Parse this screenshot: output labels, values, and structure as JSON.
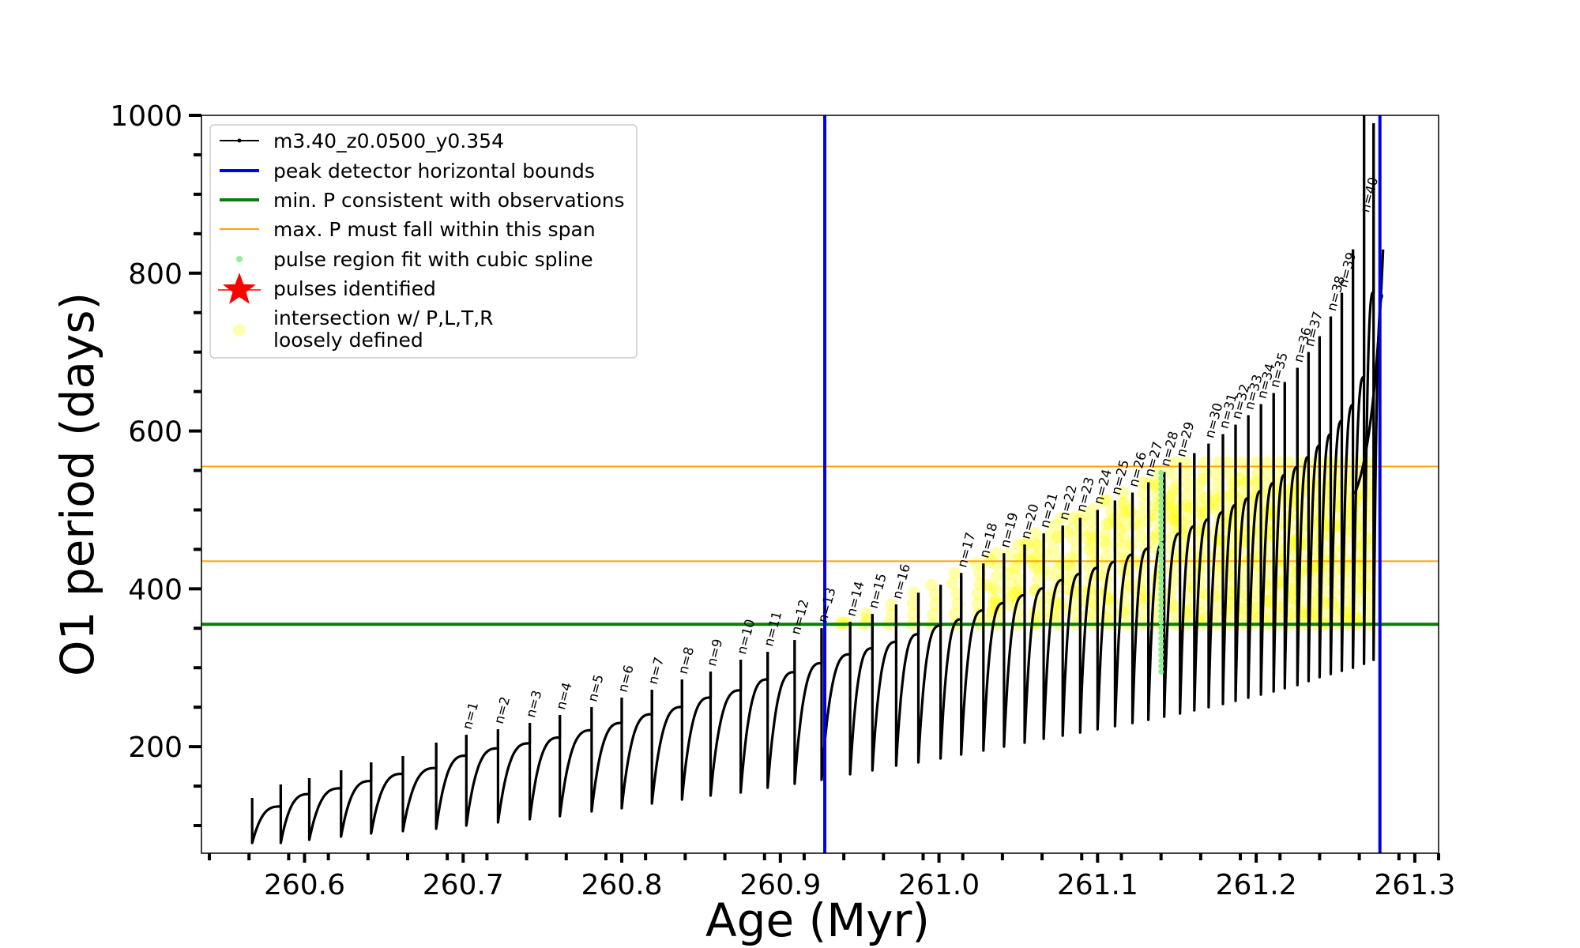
{
  "chart_data": {
    "type": "line",
    "xlabel": "Age (Myr)",
    "ylabel": "O1 period (days)",
    "xlim": [
      260.535,
      261.315
    ],
    "ylim": [
      65,
      1000
    ],
    "xticks": [
      260.6,
      260.7,
      260.8,
      260.9,
      261.0,
      261.1,
      261.2,
      261.3
    ],
    "xtick_labels": [
      "260.6",
      "260.7",
      "260.8",
      "260.9",
      "261.0",
      "261.1",
      "261.2",
      "261.3"
    ],
    "yticks": [
      200,
      400,
      600,
      800,
      1000
    ],
    "ytick_labels": [
      "200",
      "400",
      "600",
      "800",
      "1000"
    ],
    "grid": false,
    "legend_position": "top-left",
    "legend": [
      {
        "label": "m3.40_z0.0500_y0.354",
        "kind": "line-marker",
        "color": "#000000"
      },
      {
        "label": "peak detector horizontal bounds",
        "kind": "line",
        "color": "#0000ee"
      },
      {
        "label": "min. P consistent with observations",
        "kind": "line",
        "color": "#0a7d0a"
      },
      {
        "label": "max. P must fall within this span",
        "kind": "thin-line",
        "color": "#ffa500"
      },
      {
        "label": "pulse region fit with cubic spline",
        "kind": "dot",
        "color": "#90ee90"
      },
      {
        "label": "pulses identified",
        "kind": "star",
        "color": "#ff0000"
      },
      {
        "label": "intersection w/ P,L,T,R\nloosely defined",
        "kind": "dot",
        "color": "#ffffb0"
      }
    ],
    "vertical_lines": [
      {
        "x": 260.928,
        "color": "#0000ee",
        "series": "peak detector horizontal bounds"
      },
      {
        "x": 261.278,
        "color": "#0000ee",
        "series": "peak detector horizontal bounds"
      }
    ],
    "horizontal_lines": [
      {
        "y": 355,
        "color": "#0a7d0a",
        "series": "min. P consistent with observations"
      },
      {
        "y": 435,
        "color": "#ffa500",
        "series": "max. P must fall within this span"
      },
      {
        "y": 555,
        "color": "#ffa500",
        "series": "max. P must fall within this span"
      }
    ],
    "spline_fit_region": {
      "x": 261.14,
      "y_min": 295,
      "y_max": 550,
      "color": "#90ee90"
    },
    "series_pulses": [
      {
        "label": "",
        "x": 260.567,
        "min": 78,
        "max": 135
      },
      {
        "label": "",
        "x": 260.585,
        "min": 78,
        "max": 152
      },
      {
        "label": "",
        "x": 260.603,
        "min": 82,
        "max": 160
      },
      {
        "label": "",
        "x": 260.623,
        "min": 86,
        "max": 170
      },
      {
        "label": "",
        "x": 260.642,
        "min": 90,
        "max": 180
      },
      {
        "label": "",
        "x": 260.662,
        "min": 93,
        "max": 188
      },
      {
        "label": "",
        "x": 260.683,
        "min": 96,
        "max": 205
      },
      {
        "label": "n=1",
        "x": 260.702,
        "min": 100,
        "max": 215
      },
      {
        "label": "n=2",
        "x": 260.722,
        "min": 104,
        "max": 222
      },
      {
        "label": "n=3",
        "x": 260.742,
        "min": 108,
        "max": 230
      },
      {
        "label": "n=4",
        "x": 260.761,
        "min": 112,
        "max": 240
      },
      {
        "label": "n=5",
        "x": 260.781,
        "min": 118,
        "max": 250
      },
      {
        "label": "n=6",
        "x": 260.8,
        "min": 122,
        "max": 262
      },
      {
        "label": "n=7",
        "x": 260.819,
        "min": 128,
        "max": 272
      },
      {
        "label": "n=8",
        "x": 260.838,
        "min": 133,
        "max": 285
      },
      {
        "label": "n=9",
        "x": 260.856,
        "min": 138,
        "max": 295
      },
      {
        "label": "n=10",
        "x": 260.875,
        "min": 142,
        "max": 310
      },
      {
        "label": "n=11",
        "x": 260.892,
        "min": 148,
        "max": 320
      },
      {
        "label": "n=12",
        "x": 260.909,
        "min": 153,
        "max": 335
      },
      {
        "label": "n=13",
        "x": 260.926,
        "min": 158,
        "max": 350
      },
      {
        "label": "n=14",
        "x": 260.944,
        "min": 165,
        "max": 358
      },
      {
        "label": "n=15",
        "x": 260.958,
        "min": 170,
        "max": 368
      },
      {
        "label": "n=16",
        "x": 260.973,
        "min": 176,
        "max": 380
      },
      {
        "label": "",
        "x": 260.987,
        "min": 180,
        "max": 395
      },
      {
        "label": "",
        "x": 261.001,
        "min": 185,
        "max": 405
      },
      {
        "label": "n=17",
        "x": 261.014,
        "min": 190,
        "max": 420
      },
      {
        "label": "n=18",
        "x": 261.028,
        "min": 195,
        "max": 432
      },
      {
        "label": "n=19",
        "x": 261.041,
        "min": 200,
        "max": 445
      },
      {
        "label": "n=20",
        "x": 261.054,
        "min": 205,
        "max": 456
      },
      {
        "label": "n=21",
        "x": 261.066,
        "min": 210,
        "max": 470
      },
      {
        "label": "n=22",
        "x": 261.078,
        "min": 214,
        "max": 480
      },
      {
        "label": "n=23",
        "x": 261.089,
        "min": 218,
        "max": 490
      },
      {
        "label": "n=24",
        "x": 261.1,
        "min": 222,
        "max": 500
      },
      {
        "label": "n=25",
        "x": 261.111,
        "min": 226,
        "max": 512
      },
      {
        "label": "n=26",
        "x": 261.122,
        "min": 230,
        "max": 522
      },
      {
        "label": "n=27",
        "x": 261.132,
        "min": 234,
        "max": 535
      },
      {
        "label": "n=28",
        "x": 261.142,
        "min": 238,
        "max": 548
      },
      {
        "label": "n=29",
        "x": 261.152,
        "min": 242,
        "max": 560
      },
      {
        "label": "",
        "x": 261.161,
        "min": 246,
        "max": 572
      },
      {
        "label": "n=30",
        "x": 261.17,
        "min": 250,
        "max": 584
      },
      {
        "label": "n=31",
        "x": 261.179,
        "min": 254,
        "max": 596
      },
      {
        "label": "n=32",
        "x": 261.187,
        "min": 258,
        "max": 608
      },
      {
        "label": "n=33",
        "x": 261.195,
        "min": 262,
        "max": 620
      },
      {
        "label": "n=34",
        "x": 261.203,
        "min": 266,
        "max": 634
      },
      {
        "label": "n=35",
        "x": 261.211,
        "min": 270,
        "max": 648
      },
      {
        "label": "",
        "x": 261.218,
        "min": 274,
        "max": 662
      },
      {
        "label": "n=36",
        "x": 261.226,
        "min": 278,
        "max": 680
      },
      {
        "label": "n=37",
        "x": 261.233,
        "min": 283,
        "max": 700
      },
      {
        "label": "",
        "x": 261.24,
        "min": 288,
        "max": 720
      },
      {
        "label": "n=38",
        "x": 261.247,
        "min": 292,
        "max": 745
      },
      {
        "label": "n=39",
        "x": 261.254,
        "min": 296,
        "max": 775
      },
      {
        "label": "",
        "x": 261.261,
        "min": 300,
        "max": 830
      },
      {
        "label": "n=40",
        "x": 261.268,
        "min": 305,
        "max": 1000
      },
      {
        "label": "",
        "x": 261.274,
        "min": 310,
        "max": 990
      }
    ],
    "final_rise": {
      "x_start": 261.262,
      "y_start": 520,
      "x_end": 261.28,
      "y_end": 830
    }
  }
}
